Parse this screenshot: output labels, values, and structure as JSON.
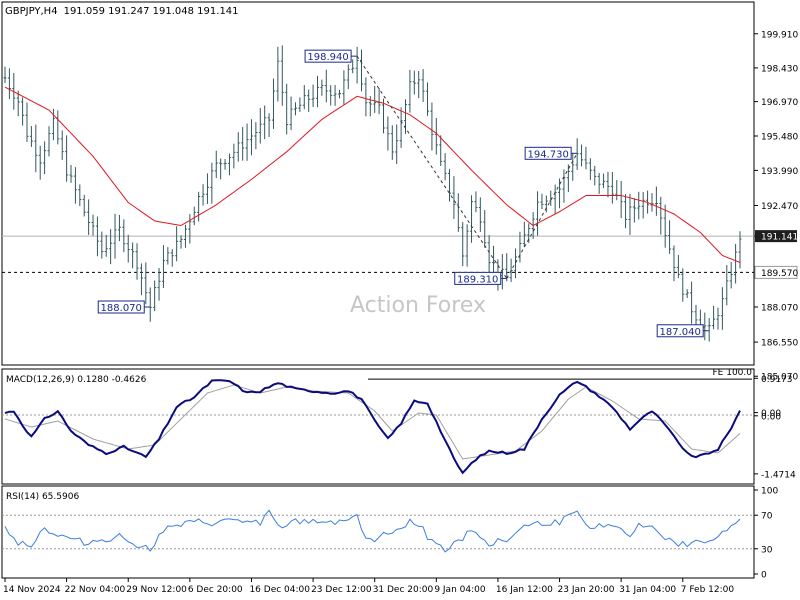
{
  "header": {
    "symbol": "GBPJPY,H4",
    "ohlc": "191.059 191.247 191.048 191.141"
  },
  "watermark": "Action Forex",
  "chart_data": [
    {
      "type": "line",
      "name": "price",
      "ylim": [
        185.6,
        201.2
      ],
      "y_ticks": [
        "199.910",
        "198.430",
        "196.970",
        "195.480",
        "193.990",
        "192.470",
        "191.141",
        "189.570",
        "188.070",
        "186.550",
        "185.070"
      ],
      "y_tick_values": [
        199.91,
        198.43,
        196.97,
        195.48,
        193.99,
        192.47,
        191.141,
        189.57,
        188.07,
        186.55,
        185.07
      ],
      "x_labels": [
        "14 Nov 2024",
        "22 Nov 04:00",
        "29 Nov 12:00",
        "6 Dec 20:00",
        "16 Dec 04:00",
        "23 Dec 12:00",
        "31 Dec 20:00",
        "9 Jan 04:00",
        "16 Jan 12:00",
        "23 Jan 20:00",
        "31 Jan 04:00",
        "7 Feb 12:00"
      ],
      "x_label_index": [
        0,
        14,
        28,
        42,
        56,
        70,
        84,
        98,
        112,
        126,
        140,
        154
      ],
      "n_bars": 168,
      "last_price": "191.141",
      "support_level": "189.570",
      "support_value": 189.57,
      "fe_label": "FE 100.0",
      "fe_value": 185.25,
      "price_anchors": [
        [
          0,
          198.0
        ],
        [
          3,
          197.0
        ],
        [
          5,
          195.6
        ],
        [
          8,
          194.5
        ],
        [
          11,
          196.0
        ],
        [
          14,
          194.0
        ],
        [
          18,
          192.2
        ],
        [
          22,
          190.5
        ],
        [
          26,
          191.4
        ],
        [
          30,
          190.0
        ],
        [
          33,
          188.07
        ],
        [
          36,
          190.0
        ],
        [
          40,
          191.0
        ],
        [
          44,
          192.8
        ],
        [
          48,
          194.2
        ],
        [
          52,
          194.8
        ],
        [
          56,
          195.5
        ],
        [
          60,
          196.2
        ],
        [
          62,
          198.6
        ],
        [
          64,
          196.2
        ],
        [
          68,
          197.0
        ],
        [
          72,
          197.5
        ],
        [
          76,
          197.4
        ],
        [
          80,
          198.94
        ],
        [
          82,
          197.0
        ],
        [
          85,
          196.6
        ],
        [
          88,
          194.9
        ],
        [
          90,
          196.0
        ],
        [
          92,
          197.6
        ],
        [
          94,
          198.1
        ],
        [
          96,
          196.5
        ],
        [
          99,
          194.2
        ],
        [
          102,
          192.6
        ],
        [
          104,
          190.3
        ],
        [
          106,
          192.6
        ],
        [
          108,
          192.0
        ],
        [
          110,
          190.2
        ],
        [
          112,
          189.6
        ],
        [
          114,
          189.31
        ],
        [
          117,
          190.6
        ],
        [
          121,
          192.6
        ],
        [
          126,
          193.2
        ],
        [
          130,
          194.73
        ],
        [
          134,
          193.6
        ],
        [
          138,
          193.2
        ],
        [
          141,
          192.0
        ],
        [
          144,
          192.6
        ],
        [
          148,
          192.8
        ],
        [
          150,
          191.3
        ],
        [
          153,
          189.3
        ],
        [
          156,
          188.0
        ],
        [
          158,
          187.4
        ],
        [
          160,
          187.04
        ],
        [
          163,
          188.3
        ],
        [
          166,
          190.3
        ],
        [
          167,
          191.141
        ]
      ],
      "ma_anchors": [
        [
          0,
          197.6
        ],
        [
          10,
          196.6
        ],
        [
          20,
          194.6
        ],
        [
          28,
          192.6
        ],
        [
          34,
          191.8
        ],
        [
          40,
          191.6
        ],
        [
          48,
          192.5
        ],
        [
          56,
          193.6
        ],
        [
          64,
          194.8
        ],
        [
          72,
          196.2
        ],
        [
          80,
          197.2
        ],
        [
          86,
          196.9
        ],
        [
          92,
          196.4
        ],
        [
          98,
          195.6
        ],
        [
          106,
          194.0
        ],
        [
          114,
          192.5
        ],
        [
          120,
          191.6
        ],
        [
          126,
          192.2
        ],
        [
          132,
          192.9
        ],
        [
          140,
          192.9
        ],
        [
          146,
          192.6
        ],
        [
          152,
          192.1
        ],
        [
          158,
          191.3
        ],
        [
          163,
          190.3
        ],
        [
          167,
          190.0
        ]
      ],
      "swing_labels": [
        {
          "text": "198.940",
          "index": 80,
          "value": 198.94,
          "side": "left"
        },
        {
          "text": "188.070",
          "index": 33,
          "value": 188.07,
          "side": "left"
        },
        {
          "text": "189.310",
          "index": 114,
          "value": 189.31,
          "side": "left"
        },
        {
          "text": "194.730",
          "index": 130,
          "value": 194.73,
          "side": "left"
        },
        {
          "text": "187.040",
          "index": 160,
          "value": 187.04,
          "side": "left"
        }
      ],
      "trendlines": [
        {
          "from": [
            80,
            198.94
          ],
          "to": [
            114,
            189.31
          ]
        },
        {
          "from": [
            114,
            189.31
          ],
          "to": [
            130,
            194.73
          ]
        }
      ]
    },
    {
      "type": "line",
      "name": "MACD",
      "title": "MACD(12,26,9) 0.1280 -0.4626",
      "ylim": [
        -1.7,
        1.1
      ],
      "y_ticks": [
        "0.9173",
        "0.00",
        "0.00",
        "-1.4714"
      ],
      "y_tick_values": [
        0.9173,
        0.06,
        -0.02,
        -1.4714
      ],
      "zero_line": 0,
      "macd_anchors": [
        [
          0,
          0.05
        ],
        [
          2,
          0.1
        ],
        [
          4,
          -0.25
        ],
        [
          6,
          -0.55
        ],
        [
          9,
          -0.1
        ],
        [
          12,
          0.1
        ],
        [
          15,
          -0.4
        ],
        [
          19,
          -0.75
        ],
        [
          23,
          -0.95
        ],
        [
          27,
          -0.8
        ],
        [
          32,
          -1.05
        ],
        [
          35,
          -0.6
        ],
        [
          39,
          0.2
        ],
        [
          43,
          0.45
        ],
        [
          47,
          0.85
        ],
        [
          51,
          0.85
        ],
        [
          55,
          0.55
        ],
        [
          58,
          0.6
        ],
        [
          62,
          0.8
        ],
        [
          66,
          0.65
        ],
        [
          70,
          0.6
        ],
        [
          74,
          0.55
        ],
        [
          78,
          0.6
        ],
        [
          81,
          0.4
        ],
        [
          84,
          -0.15
        ],
        [
          87,
          -0.6
        ],
        [
          90,
          -0.2
        ],
        [
          93,
          0.35
        ],
        [
          96,
          0.3
        ],
        [
          99,
          -0.4
        ],
        [
          102,
          -1.1
        ],
        [
          104,
          -1.45
        ],
        [
          107,
          -1.1
        ],
        [
          110,
          -0.9
        ],
        [
          114,
          -0.95
        ],
        [
          118,
          -0.85
        ],
        [
          122,
          -0.1
        ],
        [
          126,
          0.5
        ],
        [
          130,
          0.85
        ],
        [
          134,
          0.55
        ],
        [
          138,
          0.2
        ],
        [
          142,
          -0.35
        ],
        [
          144,
          -0.15
        ],
        [
          147,
          0.1
        ],
        [
          150,
          -0.25
        ],
        [
          153,
          -0.7
        ],
        [
          156,
          -1.05
        ],
        [
          159,
          -1.0
        ],
        [
          162,
          -0.85
        ],
        [
          165,
          -0.35
        ],
        [
          167,
          0.128
        ]
      ],
      "signal_anchors": [
        [
          0,
          -0.1
        ],
        [
          6,
          -0.3
        ],
        [
          12,
          -0.15
        ],
        [
          20,
          -0.6
        ],
        [
          28,
          -0.85
        ],
        [
          34,
          -0.75
        ],
        [
          40,
          -0.1
        ],
        [
          46,
          0.55
        ],
        [
          52,
          0.75
        ],
        [
          58,
          0.55
        ],
        [
          64,
          0.7
        ],
        [
          70,
          0.6
        ],
        [
          78,
          0.55
        ],
        [
          84,
          0.1
        ],
        [
          88,
          -0.4
        ],
        [
          94,
          0.05
        ],
        [
          98,
          0.0
        ],
        [
          104,
          -1.1
        ],
        [
          110,
          -1.0
        ],
        [
          116,
          -0.9
        ],
        [
          122,
          -0.4
        ],
        [
          128,
          0.4
        ],
        [
          132,
          0.7
        ],
        [
          138,
          0.35
        ],
        [
          144,
          -0.1
        ],
        [
          150,
          -0.15
        ],
        [
          156,
          -0.85
        ],
        [
          162,
          -0.95
        ],
        [
          167,
          -0.4626
        ]
      ]
    },
    {
      "type": "line",
      "name": "RSI",
      "title": "RSI(14) 65.5906",
      "ylim": [
        0,
        100
      ],
      "y_ticks": [
        "100",
        "70",
        "30",
        "0"
      ],
      "y_tick_values": [
        100,
        70,
        30,
        0
      ],
      "levels": [
        70,
        30
      ],
      "rsi_anchors": [
        [
          0,
          55
        ],
        [
          3,
          38
        ],
        [
          6,
          35
        ],
        [
          9,
          55
        ],
        [
          12,
          45
        ],
        [
          15,
          42
        ],
        [
          18,
          38
        ],
        [
          22,
          40
        ],
        [
          26,
          45
        ],
        [
          30,
          35
        ],
        [
          33,
          30
        ],
        [
          36,
          52
        ],
        [
          40,
          58
        ],
        [
          44,
          62
        ],
        [
          48,
          60
        ],
        [
          52,
          65
        ],
        [
          56,
          60
        ],
        [
          58,
          62
        ],
        [
          60,
          74
        ],
        [
          62,
          55
        ],
        [
          66,
          62
        ],
        [
          70,
          63
        ],
        [
          74,
          62
        ],
        [
          78,
          65
        ],
        [
          80,
          68
        ],
        [
          82,
          45
        ],
        [
          84,
          40
        ],
        [
          86,
          48
        ],
        [
          88,
          45
        ],
        [
          90,
          55
        ],
        [
          92,
          65
        ],
        [
          94,
          60
        ],
        [
          96,
          45
        ],
        [
          98,
          35
        ],
        [
          100,
          30
        ],
        [
          102,
          38
        ],
        [
          104,
          40
        ],
        [
          106,
          55
        ],
        [
          108,
          45
        ],
        [
          110,
          35
        ],
        [
          112,
          42
        ],
        [
          114,
          38
        ],
        [
          117,
          55
        ],
        [
          121,
          60
        ],
        [
          126,
          62
        ],
        [
          130,
          72
        ],
        [
          132,
          55
        ],
        [
          134,
          58
        ],
        [
          138,
          55
        ],
        [
          142,
          48
        ],
        [
          144,
          58
        ],
        [
          148,
          55
        ],
        [
          150,
          42
        ],
        [
          153,
          35
        ],
        [
          156,
          35
        ],
        [
          158,
          40
        ],
        [
          160,
          36
        ],
        [
          162,
          45
        ],
        [
          164,
          55
        ],
        [
          166,
          62
        ],
        [
          167,
          65.59
        ]
      ]
    }
  ],
  "colors": {
    "bar": "#33575e",
    "ma": "#e0171d",
    "macd": "#0b0b80",
    "signal": "#a0a0a0",
    "rsi": "#3b7ee0",
    "label_box": "#1a2a8a",
    "price_box": "#1f1f1f"
  }
}
